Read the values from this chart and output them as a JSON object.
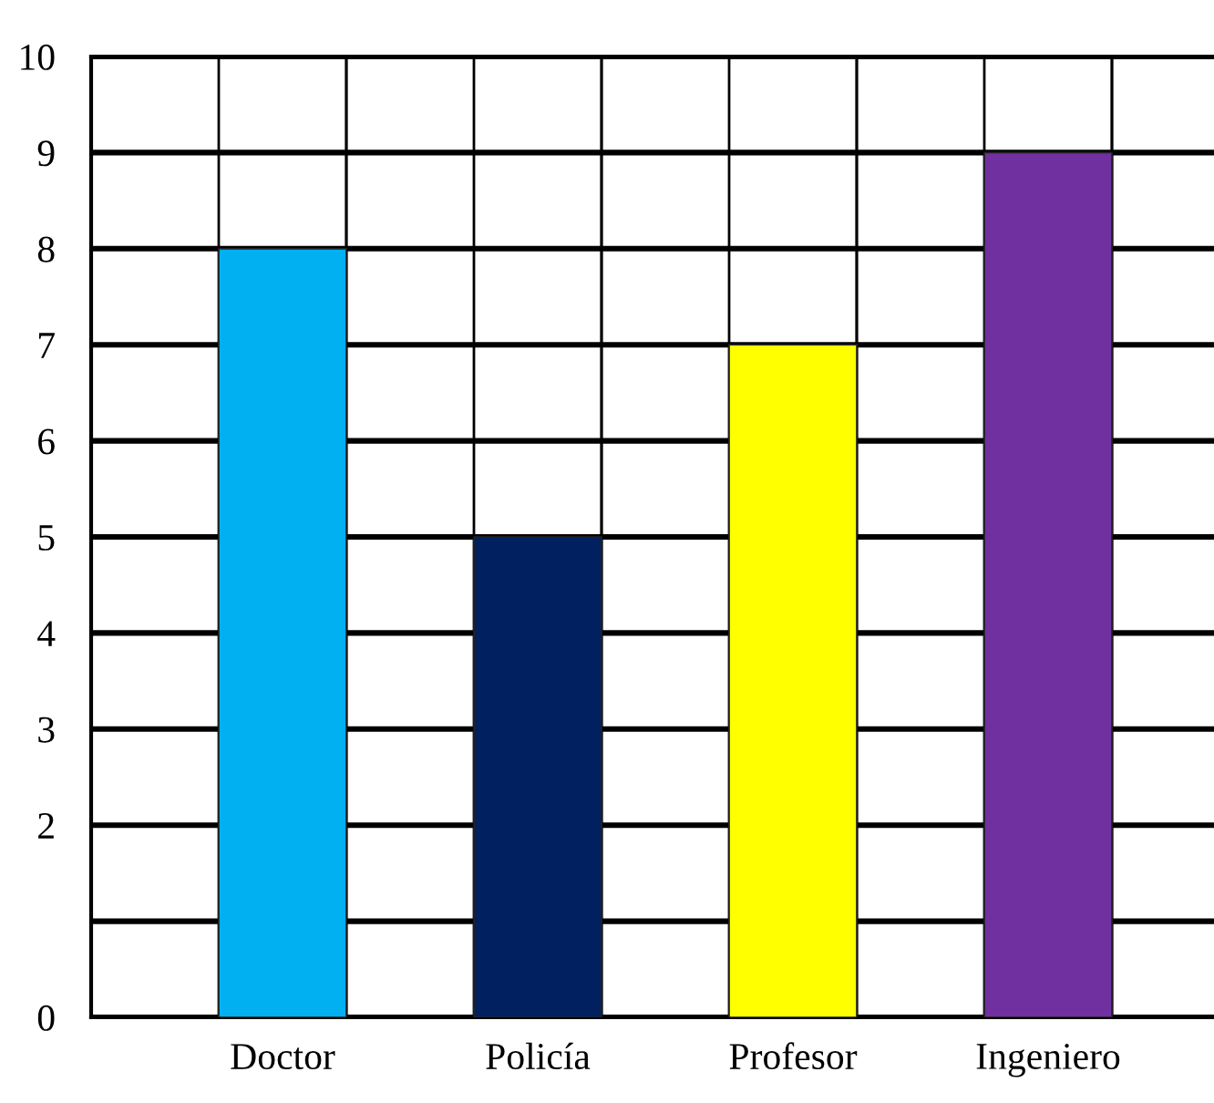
{
  "chart_data": {
    "type": "bar",
    "categories": [
      "Doctor",
      "Policía",
      "Profesor",
      "Ingeniero"
    ],
    "values": [
      8,
      5,
      7,
      9
    ],
    "colors": [
      "#00b0f0",
      "#002060",
      "#ffff00",
      "#7030a0"
    ],
    "ylim": [
      0,
      10
    ],
    "yticks": [
      {
        "value": 0,
        "label": "0"
      },
      {
        "value": 1,
        "label": null
      },
      2,
      3,
      4,
      5,
      6,
      7,
      8,
      9,
      10
    ],
    "grid": true
  }
}
